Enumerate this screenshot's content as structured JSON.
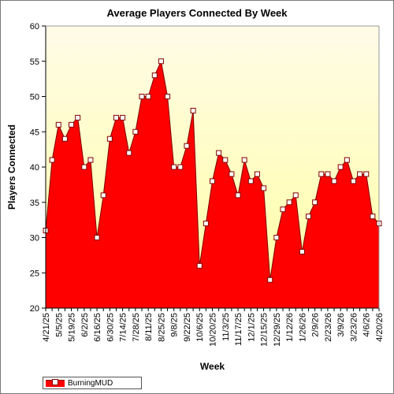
{
  "chart_data": {
    "type": "area",
    "title": "Average Players Connected By Week",
    "xlabel": "Week",
    "ylabel": "Players Connected",
    "ylim": [
      20,
      60
    ],
    "yticks": [
      20,
      25,
      30,
      35,
      40,
      45,
      50,
      55,
      60
    ],
    "grid": false,
    "legend": "bottom-left",
    "x": [
      "4/21/25",
      "4/28/25",
      "5/5/25",
      "5/12/25",
      "5/19/25",
      "5/26/25",
      "6/2/25",
      "6/9/25",
      "6/16/25",
      "6/23/25",
      "6/30/25",
      "7/7/25",
      "7/14/25",
      "7/21/25",
      "7/28/25",
      "8/4/25",
      "8/11/25",
      "8/18/25",
      "8/25/25",
      "9/1/25",
      "9/8/25",
      "9/15/25",
      "9/22/25",
      "9/29/25",
      "10/6/25",
      "10/13/25",
      "10/20/25",
      "10/27/25",
      "11/3/25",
      "11/10/25",
      "11/17/25",
      "11/24/25",
      "12/1/25",
      "12/8/25",
      "12/15/25",
      "12/22/25",
      "12/29/25",
      "1/5/26",
      "1/12/26",
      "1/19/26",
      "1/26/26",
      "2/2/26",
      "2/9/26",
      "2/16/26",
      "2/23/26",
      "3/2/26",
      "3/9/26",
      "3/16/26",
      "3/23/26",
      "3/30/26",
      "4/6/26",
      "4/13/26",
      "4/20/26"
    ],
    "xtick_labels": [
      "4/21/25",
      "5/5/25",
      "5/19/25",
      "6/2/25",
      "6/16/25",
      "6/30/25",
      "7/14/25",
      "7/28/25",
      "8/11/25",
      "8/25/25",
      "9/8/25",
      "9/22/25",
      "10/6/25",
      "10/20/25",
      "11/3/25",
      "11/17/25",
      "12/1/25",
      "12/15/25",
      "12/29/25",
      "1/12/26",
      "1/26/26",
      "2/9/26",
      "2/23/26",
      "3/9/26",
      "3/23/26",
      "4/6/26",
      "4/20/26"
    ],
    "series": [
      {
        "name": "BurningMUD",
        "values": [
          31,
          41,
          46,
          44,
          46,
          47,
          40,
          41,
          30,
          36,
          44,
          47,
          47,
          42,
          45,
          50,
          50,
          53,
          55,
          50,
          40,
          40,
          43,
          48,
          26,
          32,
          38,
          42,
          41,
          39,
          36,
          41,
          38,
          39,
          37,
          24,
          30,
          34,
          35,
          36,
          28,
          33,
          35,
          39,
          39,
          38,
          40,
          41,
          38,
          39,
          39,
          33,
          32
        ]
      }
    ]
  },
  "colors": {
    "fill": "#ff0000",
    "line": "#800000",
    "marker_fill": "#ffffff",
    "plot_bg_top": "#fffbe8",
    "plot_bg_bottom": "#ffffa0"
  }
}
